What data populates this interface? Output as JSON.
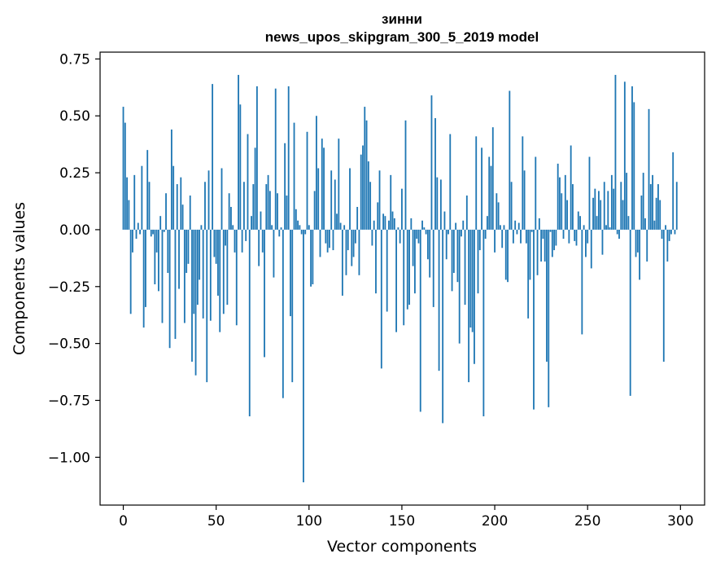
{
  "chart_data": {
    "type": "bar",
    "title": "зинни",
    "subtitle": "news_upos_skipgram_300_5_2019 model",
    "xlabel": "Vector components",
    "ylabel": "Components values",
    "xlim": [
      -12.5,
      313
    ],
    "ylim": [
      -1.21,
      0.78
    ],
    "xticks": [
      0,
      50,
      100,
      150,
      200,
      250,
      300
    ],
    "yticks": [
      -1.0,
      -0.75,
      -0.5,
      -0.25,
      0.0,
      0.25,
      0.5,
      0.75
    ],
    "xtick_labels": [
      "0",
      "50",
      "100",
      "150",
      "200",
      "250",
      "300"
    ],
    "ytick_labels": [
      "−1.00",
      "−0.75",
      "−0.50",
      "−0.25",
      "0.00",
      "0.25",
      "0.50",
      "0.75"
    ],
    "bar_color": "#1f77b4",
    "bar_width": 0.8,
    "series": [
      {
        "name": "components",
        "values": [
          0.54,
          0.47,
          0.23,
          0.13,
          -0.37,
          -0.1,
          0.24,
          -0.04,
          0.03,
          -0.02,
          0.28,
          -0.43,
          -0.34,
          0.35,
          0.21,
          -0.03,
          -0.02,
          -0.24,
          -0.1,
          -0.27,
          0.06,
          -0.41,
          -0.01,
          0.16,
          -0.19,
          -0.52,
          0.44,
          0.28,
          -0.48,
          0.2,
          -0.26,
          0.23,
          0.11,
          -0.41,
          -0.19,
          -0.15,
          0.15,
          -0.58,
          -0.37,
          -0.64,
          -0.33,
          -0.22,
          0.02,
          -0.39,
          0.21,
          -0.67,
          0.26,
          -0.4,
          0.64,
          -0.12,
          -0.15,
          -0.29,
          -0.45,
          0.27,
          -0.37,
          -0.07,
          -0.33,
          0.16,
          0.1,
          0.02,
          -0.1,
          -0.42,
          0.68,
          0.55,
          -0.1,
          0.21,
          -0.05,
          0.42,
          -0.82,
          0.06,
          0.2,
          0.36,
          0.63,
          -0.16,
          0.08,
          -0.1,
          -0.56,
          0.2,
          0.24,
          0.17,
          0.02,
          -0.21,
          0.62,
          0.16,
          -0.03,
          0.01,
          -0.74,
          0.38,
          0.15,
          0.63,
          -0.38,
          -0.67,
          0.47,
          0.09,
          0.04,
          0.02,
          -0.02,
          -1.11,
          -0.02,
          0.43,
          0.02,
          -0.25,
          -0.24,
          0.17,
          0.5,
          0.27,
          -0.12,
          0.4,
          0.36,
          -0.06,
          -0.1,
          -0.08,
          0.26,
          -0.09,
          0.22,
          0.07,
          0.4,
          0.03,
          -0.29,
          0.02,
          -0.2,
          -0.09,
          0.27,
          -0.16,
          -0.12,
          -0.06,
          0.1,
          -0.2,
          0.33,
          0.37,
          0.54,
          0.48,
          0.3,
          0.21,
          -0.07,
          0.04,
          -0.28,
          0.12,
          0.26,
          -0.61,
          0.07,
          0.06,
          -0.36,
          0.04,
          0.24,
          0.08,
          0.05,
          -0.45,
          0.01,
          -0.06,
          0.18,
          -0.42,
          0.48,
          -0.35,
          -0.33,
          0.05,
          -0.16,
          -0.28,
          -0.04,
          -0.06,
          -0.8,
          0.04,
          0.01,
          -0.02,
          -0.13,
          -0.21,
          0.59,
          -0.34,
          0.49,
          0.23,
          -0.62,
          0.22,
          -0.85,
          0.08,
          -0.13,
          -0.02,
          0.42,
          -0.27,
          -0.19,
          0.03,
          -0.23,
          -0.5,
          -0.03,
          0.04,
          -0.33,
          0.15,
          -0.67,
          -0.43,
          -0.45,
          -0.59,
          0.41,
          -0.28,
          -0.09,
          0.36,
          -0.82,
          -0.04,
          0.06,
          0.32,
          0.28,
          0.45,
          -0.1,
          0.16,
          0.12,
          0.02,
          -0.08,
          0.02,
          -0.22,
          -0.23,
          0.61,
          0.21,
          -0.06,
          0.04,
          -0.02,
          0.03,
          -0.06,
          0.41,
          0.26,
          -0.06,
          -0.39,
          -0.22,
          -0.01,
          -0.79,
          0.32,
          -0.2,
          0.05,
          -0.14,
          -0.04,
          -0.14,
          -0.58,
          -0.78,
          -0.01,
          -0.12,
          -0.09,
          -0.07,
          0.29,
          0.23,
          0.16,
          -0.04,
          0.24,
          0.13,
          -0.06,
          0.37,
          0.2,
          -0.05,
          -0.07,
          0.08,
          0.06,
          -0.46,
          0.02,
          -0.12,
          -0.06,
          0.32,
          -0.17,
          0.14,
          0.18,
          0.06,
          0.17,
          0.13,
          -0.11,
          0.21,
          0.02,
          0.17,
          0.01,
          0.24,
          0.18,
          0.68,
          -0.02,
          -0.04,
          0.21,
          0.13,
          0.65,
          0.25,
          0.06,
          -0.73,
          0.63,
          0.56,
          -0.12,
          -0.1,
          -0.22,
          0.15,
          0.25,
          0.05,
          -0.14,
          0.53,
          0.2,
          0.24,
          0.04,
          0.14,
          0.2,
          0.13,
          -0.04,
          -0.58,
          0.02,
          -0.14,
          -0.05,
          -0.02,
          0.34,
          -0.02,
          0.21
        ]
      }
    ]
  }
}
